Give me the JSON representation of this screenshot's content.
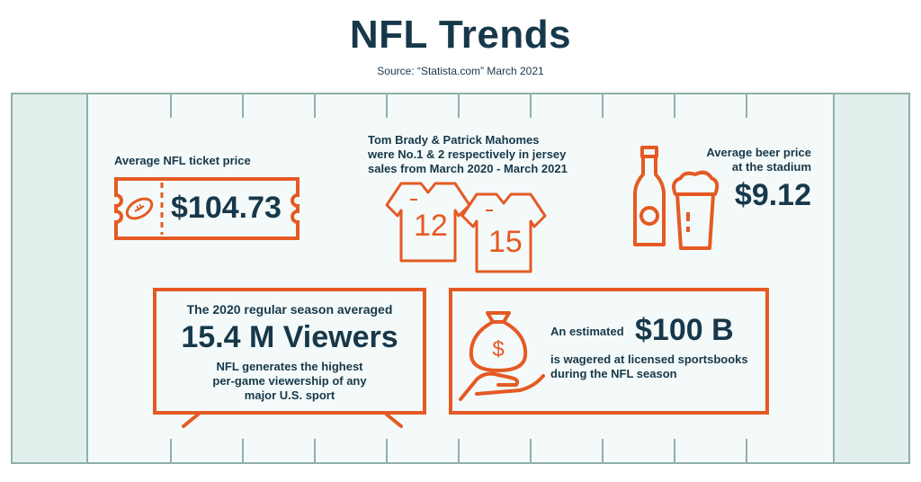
{
  "header": {
    "title": "NFL Trends",
    "source": "Source: “Statista.com” March 2021"
  },
  "ticket": {
    "label": "Average NFL ticket price",
    "value": "$104.73",
    "icon": "ticket-football-icon"
  },
  "jerseys": {
    "caption_line1": "Tom Brady & Patrick Mahomes",
    "caption_line2": "were No.1 & 2 respectively in jersey",
    "caption_line3": "sales from March 2020 - March 2021",
    "jersey1_number": "12",
    "jersey2_number": "15",
    "icon": "jersey-icon"
  },
  "beer": {
    "label_line1": "Average beer price",
    "label_line2": "at the stadium",
    "value": "$9.12",
    "icons": [
      "beer-bottle-icon",
      "beer-glass-icon"
    ]
  },
  "viewers": {
    "line1": "The 2020 regular season averaged",
    "headline": "15.4 M Viewers",
    "line2": "NFL generates the highest",
    "line3": "per-game viewership of any",
    "line4": "major U.S. sport"
  },
  "betting": {
    "prefix": "An estimated",
    "value": "$100 B",
    "line2": "is wagered at licensed sportsbooks",
    "line3": "during the NFL season",
    "icon": "money-bag-hand-icon"
  },
  "colors": {
    "navy": "#17384a",
    "orange": "#e55a24",
    "field_line": "#8fb0ab",
    "endzone": "#e3efed"
  }
}
